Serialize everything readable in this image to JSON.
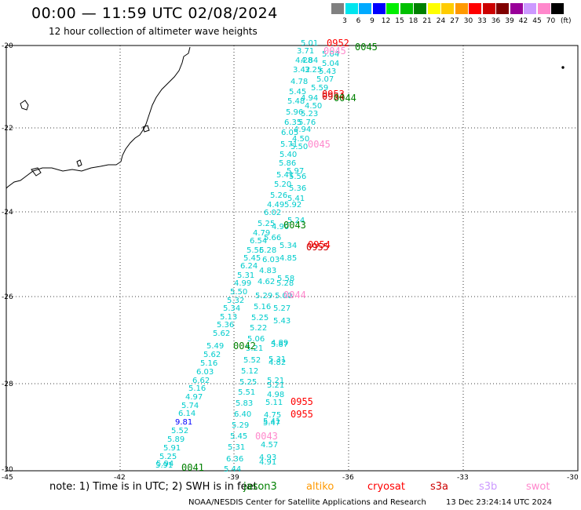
{
  "title": "00:00 — 11:59 UTC 02/08/2024",
  "subtitle": "12 hour collection of altimeter wave heights",
  "legend": {
    "unit": "(ft)",
    "bins": [
      {
        "label": "3",
        "color": "#808080"
      },
      {
        "label": "6",
        "color": "#00e5ee"
      },
      {
        "label": "9",
        "color": "#00aaff"
      },
      {
        "label": "12",
        "color": "#0000ff"
      },
      {
        "label": "15",
        "color": "#00ee00"
      },
      {
        "label": "18",
        "color": "#00c000"
      },
      {
        "label": "21",
        "color": "#008000"
      },
      {
        "label": "24",
        "color": "#ffff00"
      },
      {
        "label": "27",
        "color": "#ffcc00"
      },
      {
        "label": "30",
        "color": "#ff9900"
      },
      {
        "label": "33",
        "color": "#ff0000"
      },
      {
        "label": "36",
        "color": "#cc0000"
      },
      {
        "label": "39",
        "color": "#800000"
      },
      {
        "label": "42",
        "color": "#990099"
      },
      {
        "label": "45",
        "color": "#cc99ff"
      },
      {
        "label": "70",
        "color": "#ff88cc"
      },
      {
        "label": "",
        "color": "#000000"
      }
    ]
  },
  "axes": {
    "lat_labels": [
      "-20",
      "-22",
      "-24",
      "-26",
      "-28",
      "-30"
    ],
    "lon_labels": [
      "-45",
      "-42",
      "-39",
      "-36",
      "-33",
      "-30"
    ]
  },
  "wave_heights": [
    {
      "v": "5.01",
      "x": 383,
      "y": 58
    },
    {
      "v": "3.71",
      "x": 378,
      "y": 68
    },
    {
      "v": "5.04",
      "x": 410,
      "y": 72
    },
    {
      "v": "4.84",
      "x": 383,
      "y": 80
    },
    {
      "v": "5.04",
      "x": 410,
      "y": 84
    },
    {
      "v": "4.28",
      "x": 376,
      "y": 80
    },
    {
      "v": "3.42",
      "x": 373,
      "y": 92
    },
    {
      "v": "3.25",
      "x": 388,
      "y": 92
    },
    {
      "v": "5.43",
      "x": 406,
      "y": 94
    },
    {
      "v": "5.07",
      "x": 403,
      "y": 104
    },
    {
      "v": "4.78",
      "x": 370,
      "y": 107
    },
    {
      "v": "5.59",
      "x": 396,
      "y": 115
    },
    {
      "v": "5.45",
      "x": 368,
      "y": 120
    },
    {
      "v": "4.94",
      "x": 383,
      "y": 128
    },
    {
      "v": "5.48",
      "x": 366,
      "y": 132
    },
    {
      "v": "4.50",
      "x": 388,
      "y": 138
    },
    {
      "v": "5.96",
      "x": 364,
      "y": 146
    },
    {
      "v": "5.23",
      "x": 383,
      "y": 148
    },
    {
      "v": "6.35",
      "x": 362,
      "y": 159
    },
    {
      "v": "5.76",
      "x": 380,
      "y": 159
    },
    {
      "v": "4.94",
      "x": 374,
      "y": 168
    },
    {
      "v": "6.05",
      "x": 358,
      "y": 172
    },
    {
      "v": "4.50",
      "x": 372,
      "y": 180
    },
    {
      "v": "5.71",
      "x": 357,
      "y": 187
    },
    {
      "v": "5.50",
      "x": 370,
      "y": 190
    },
    {
      "v": "5.40",
      "x": 356,
      "y": 200
    },
    {
      "v": "5.86",
      "x": 355,
      "y": 211
    },
    {
      "v": "5.97",
      "x": 365,
      "y": 221
    },
    {
      "v": "5.56",
      "x": 368,
      "y": 228
    },
    {
      "v": "5.41",
      "x": 352,
      "y": 226
    },
    {
      "v": "5.20",
      "x": 349,
      "y": 238
    },
    {
      "v": "5.36",
      "x": 368,
      "y": 243
    },
    {
      "v": "5.26",
      "x": 344,
      "y": 252
    },
    {
      "v": "5.41",
      "x": 366,
      "y": 256
    },
    {
      "v": "4.49",
      "x": 340,
      "y": 264
    },
    {
      "v": "5.92",
      "x": 362,
      "y": 264
    },
    {
      "v": "6.02",
      "x": 336,
      "y": 274
    },
    {
      "v": "5.24",
      "x": 366,
      "y": 284
    },
    {
      "v": "5.25",
      "x": 328,
      "y": 288
    },
    {
      "v": "4.90",
      "x": 346,
      "y": 292
    },
    {
      "v": "4.79",
      "x": 322,
      "y": 300
    },
    {
      "v": "5.66",
      "x": 336,
      "y": 306
    },
    {
      "v": "6.54",
      "x": 318,
      "y": 310
    },
    {
      "v": "5.56",
      "x": 314,
      "y": 322
    },
    {
      "v": "5.28",
      "x": 330,
      "y": 322
    },
    {
      "v": "5.34",
      "x": 356,
      "y": 316
    },
    {
      "v": "5.45",
      "x": 310,
      "y": 332
    },
    {
      "v": "6.03",
      "x": 334,
      "y": 334
    },
    {
      "v": "4.85",
      "x": 356,
      "y": 332
    },
    {
      "v": "6.24",
      "x": 306,
      "y": 342
    },
    {
      "v": "4.83",
      "x": 330,
      "y": 348
    },
    {
      "v": "5.31",
      "x": 302,
      "y": 354
    },
    {
      "v": "5.58",
      "x": 353,
      "y": 358
    },
    {
      "v": "4.99",
      "x": 298,
      "y": 364
    },
    {
      "v": "4.62",
      "x": 328,
      "y": 362
    },
    {
      "v": "5.28",
      "x": 352,
      "y": 364
    },
    {
      "v": "5.50",
      "x": 293,
      "y": 375
    },
    {
      "v": "5.29",
      "x": 325,
      "y": 380
    },
    {
      "v": "5.00",
      "x": 350,
      "y": 380
    },
    {
      "v": "5.32",
      "x": 289,
      "y": 386
    },
    {
      "v": "5.34",
      "x": 284,
      "y": 396
    },
    {
      "v": "5.16",
      "x": 323,
      "y": 394
    },
    {
      "v": "5.27",
      "x": 348,
      "y": 396
    },
    {
      "v": "5.13",
      "x": 280,
      "y": 407
    },
    {
      "v": "5.25",
      "x": 320,
      "y": 408
    },
    {
      "v": "5.43",
      "x": 348,
      "y": 412
    },
    {
      "v": "5.36",
      "x": 276,
      "y": 417
    },
    {
      "v": "5.22",
      "x": 318,
      "y": 421
    },
    {
      "v": "5.62",
      "x": 271,
      "y": 428
    },
    {
      "v": "5.06",
      "x": 315,
      "y": 435
    },
    {
      "v": "4.89",
      "x": 345,
      "y": 440
    },
    {
      "v": "5.49",
      "x": 263,
      "y": 444
    },
    {
      "v": "5.87",
      "x": 345,
      "y": 442
    },
    {
      "v": "5.21",
      "x": 313,
      "y": 447
    },
    {
      "v": "5.62",
      "x": 259,
      "y": 455
    },
    {
      "v": "5.52",
      "x": 310,
      "y": 462
    },
    {
      "v": "5.31",
      "x": 342,
      "y": 461
    },
    {
      "v": "4.82",
      "x": 342,
      "y": 465
    },
    {
      "v": "5.16",
      "x": 255,
      "y": 466
    },
    {
      "v": "5.12",
      "x": 307,
      "y": 476
    },
    {
      "v": "6.03",
      "x": 250,
      "y": 477
    },
    {
      "v": "5.25",
      "x": 305,
      "y": 490
    },
    {
      "v": "5.21",
      "x": 340,
      "y": 488
    },
    {
      "v": "6.62",
      "x": 245,
      "y": 488
    },
    {
      "v": "5.21",
      "x": 340,
      "y": 494
    },
    {
      "v": "5.16",
      "x": 240,
      "y": 498
    },
    {
      "v": "5.51",
      "x": 303,
      "y": 503
    },
    {
      "v": "4.98",
      "x": 340,
      "y": 506
    },
    {
      "v": "4.97",
      "x": 236,
      "y": 509
    },
    {
      "v": "5.83",
      "x": 300,
      "y": 517
    },
    {
      "v": "5.11",
      "x": 338,
      "y": 516
    },
    {
      "v": "5.74",
      "x": 231,
      "y": 520
    },
    {
      "v": "6.40",
      "x": 298,
      "y": 531
    },
    {
      "v": "4.75",
      "x": 336,
      "y": 532
    },
    {
      "v": "6.14",
      "x": 227,
      "y": 530
    },
    {
      "v": "9.81",
      "x": 223,
      "y": 541
    },
    {
      "v": "5.29",
      "x": 295,
      "y": 545
    },
    {
      "v": "5.41",
      "x": 335,
      "y": 540
    },
    {
      "v": "5.47",
      "x": 335,
      "y": 542
    },
    {
      "v": "5.52",
      "x": 218,
      "y": 552
    },
    {
      "v": "5.45",
      "x": 293,
      "y": 559
    },
    {
      "v": "5.89",
      "x": 213,
      "y": 563
    },
    {
      "v": "4.57",
      "x": 332,
      "y": 570
    },
    {
      "v": "5.31",
      "x": 290,
      "y": 573
    },
    {
      "v": "5.91",
      "x": 208,
      "y": 574
    },
    {
      "v": "5.25",
      "x": 203,
      "y": 585
    },
    {
      "v": "6.36",
      "x": 288,
      "y": 588
    },
    {
      "v": "4.93",
      "x": 330,
      "y": 586
    },
    {
      "v": "4.91",
      "x": 330,
      "y": 592
    },
    {
      "v": "5.91",
      "x": 198,
      "y": 596
    },
    {
      "v": "5.94",
      "x": 199,
      "y": 594
    },
    {
      "v": "5.44",
      "x": 285,
      "y": 601
    }
  ],
  "passes": [
    {
      "label": "0952",
      "x": 416,
      "y": 59,
      "color": "#ff0000"
    },
    {
      "label": "0045",
      "x": 452,
      "y": 64,
      "color": "#008000"
    },
    {
      "label": "0045",
      "x": 412,
      "y": 69,
      "color": "#ff88cc"
    },
    {
      "label": "0953",
      "x": 410,
      "y": 124,
      "color": "#ff0000"
    },
    {
      "label": "0954",
      "x": 410,
      "y": 127,
      "color": "#cc0000"
    },
    {
      "label": "0044",
      "x": 425,
      "y": 129,
      "color": "#008000"
    },
    {
      "label": "0045",
      "x": 392,
      "y": 188,
      "color": "#ff88cc"
    },
    {
      "label": "0043",
      "x": 361,
      "y": 291,
      "color": "#008000"
    },
    {
      "label": "0954",
      "x": 392,
      "y": 316,
      "color": "#ff0000"
    },
    {
      "label": "0955",
      "x": 390,
      "y": 319,
      "color": "#cc0000"
    },
    {
      "label": "0044",
      "x": 361,
      "y": 380,
      "color": "#ff88cc"
    },
    {
      "label": "0042",
      "x": 297,
      "y": 445,
      "color": "#008000"
    },
    {
      "label": "0955",
      "x": 370,
      "y": 516,
      "color": "#ff0000"
    },
    {
      "label": "0955",
      "x": 370,
      "y": 532,
      "color": "#ff0000"
    },
    {
      "label": "0043",
      "x": 325,
      "y": 560,
      "color": "#ff88cc"
    },
    {
      "label": "0041",
      "x": 231,
      "y": 600,
      "color": "#008000"
    }
  ],
  "note": "note: 1) Time is in UTC; 2) SWH is in feet",
  "satellites": [
    {
      "name": "jason3",
      "color": "#008000"
    },
    {
      "name": "altiko",
      "color": "#ff9900"
    },
    {
      "name": "cryosat",
      "color": "#ff0000"
    },
    {
      "name": "s3a",
      "color": "#cc0000"
    },
    {
      "name": "s3b",
      "color": "#cc99ff"
    },
    {
      "name": "swot",
      "color": "#ff88cc"
    }
  ],
  "footer": "NOAA/NESDIS Center for Satellite Applications and Research",
  "footer_time": "13 Dec 23:24:14 UTC 2024"
}
